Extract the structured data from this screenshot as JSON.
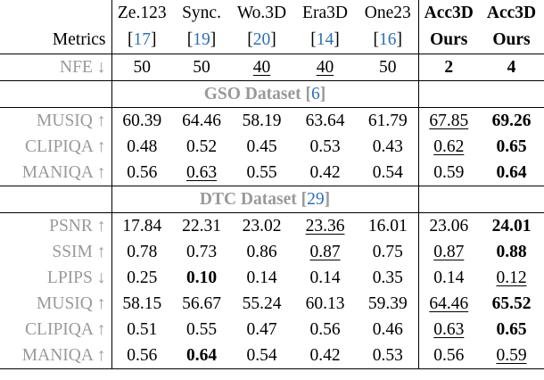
{
  "header": {
    "metrics_label": "Metrics",
    "methods": [
      {
        "name": "Ze.123",
        "ref": "17",
        "bold": false
      },
      {
        "name": "Sync.",
        "ref": "19",
        "bold": false
      },
      {
        "name": "Wo.3D",
        "ref": "20",
        "bold": false
      },
      {
        "name": "Era3D",
        "ref": "14",
        "bold": false
      },
      {
        "name": "One23",
        "ref": "16",
        "bold": false
      },
      {
        "name": "Acc3D",
        "sub": "Ours",
        "bold": true
      },
      {
        "name": "Acc3D",
        "sub": "Ours",
        "bold": true
      }
    ]
  },
  "nfe": {
    "label": "NFE ↓",
    "values": [
      "50",
      "50",
      "40",
      "40",
      "50",
      "2",
      "4"
    ],
    "underline": [
      false,
      false,
      true,
      true,
      false,
      false,
      false
    ],
    "bold": [
      false,
      false,
      false,
      false,
      false,
      true,
      true
    ]
  },
  "sections": [
    {
      "title": "GSO Dataset",
      "ref": "6",
      "rows": [
        {
          "label": "MUSIQ ↑",
          "values": [
            "60.39",
            "64.46",
            "58.19",
            "63.64",
            "61.79",
            "67.85",
            "69.26"
          ],
          "bold": [
            false,
            false,
            false,
            false,
            false,
            false,
            true
          ],
          "underline": [
            false,
            false,
            false,
            false,
            false,
            true,
            false
          ]
        },
        {
          "label": "CLIPIQA ↑",
          "values": [
            "0.48",
            "0.52",
            "0.45",
            "0.53",
            "0.43",
            "0.62",
            "0.65"
          ],
          "bold": [
            false,
            false,
            false,
            false,
            false,
            false,
            true
          ],
          "underline": [
            false,
            false,
            false,
            false,
            false,
            true,
            false
          ]
        },
        {
          "label": "MANIQA ↑",
          "values": [
            "0.56",
            "0.63",
            "0.55",
            "0.42",
            "0.54",
            "0.59",
            "0.64"
          ],
          "bold": [
            false,
            false,
            false,
            false,
            false,
            false,
            true
          ],
          "underline": [
            false,
            true,
            false,
            false,
            false,
            false,
            false
          ]
        }
      ]
    },
    {
      "title": "DTC Dataset",
      "ref": "29",
      "rows": [
        {
          "label": "PSNR ↑",
          "values": [
            "17.84",
            "22.31",
            "23.02",
            "23.36",
            "16.01",
            "23.06",
            "24.01"
          ],
          "bold": [
            false,
            false,
            false,
            false,
            false,
            false,
            true
          ],
          "underline": [
            false,
            false,
            false,
            true,
            false,
            false,
            false
          ]
        },
        {
          "label": "SSIM ↑",
          "values": [
            "0.78",
            "0.73",
            "0.86",
            "0.87",
            "0.75",
            "0.87",
            "0.88"
          ],
          "bold": [
            false,
            false,
            false,
            false,
            false,
            false,
            true
          ],
          "underline": [
            false,
            false,
            false,
            true,
            false,
            true,
            false
          ]
        },
        {
          "label": "LPIPS ↓",
          "values": [
            "0.25",
            "0.10",
            "0.14",
            "0.14",
            "0.35",
            "0.14",
            "0.12"
          ],
          "bold": [
            false,
            true,
            false,
            false,
            false,
            false,
            false
          ],
          "underline": [
            false,
            false,
            false,
            false,
            false,
            false,
            true
          ]
        },
        {
          "label": "MUSIQ ↑",
          "values": [
            "58.15",
            "56.67",
            "55.24",
            "60.13",
            "59.39",
            "64.46",
            "65.52"
          ],
          "bold": [
            false,
            false,
            false,
            false,
            false,
            false,
            true
          ],
          "underline": [
            false,
            false,
            false,
            false,
            false,
            true,
            false
          ]
        },
        {
          "label": "CLIPIQA ↑",
          "values": [
            "0.51",
            "0.55",
            "0.47",
            "0.56",
            "0.46",
            "0.63",
            "0.65"
          ],
          "bold": [
            false,
            false,
            false,
            false,
            false,
            false,
            true
          ],
          "underline": [
            false,
            false,
            false,
            false,
            false,
            true,
            false
          ]
        },
        {
          "label": "MANIQA ↑",
          "values": [
            "0.56",
            "0.64",
            "0.54",
            "0.42",
            "0.53",
            "0.56",
            "0.59"
          ],
          "bold": [
            false,
            true,
            false,
            false,
            false,
            false,
            false
          ],
          "underline": [
            false,
            false,
            false,
            false,
            false,
            false,
            true
          ]
        }
      ]
    }
  ],
  "colors": {
    "grey_text": "#999999",
    "ref_blue": "#2f6fb3"
  }
}
